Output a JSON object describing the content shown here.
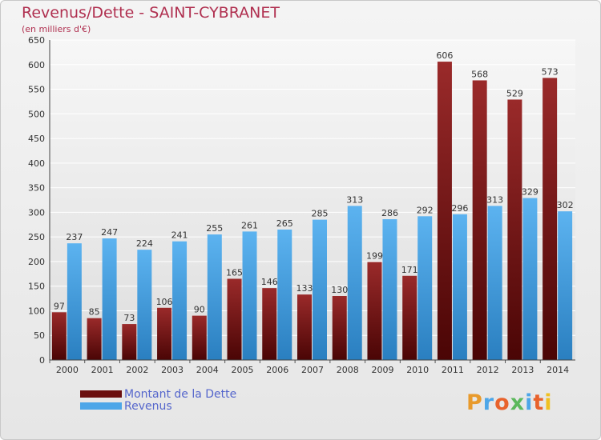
{
  "title": "Revenus/Dette - SAINT-CYBRANET",
  "subtitle": "(en milliers d'€)",
  "chart_data": {
    "type": "bar",
    "categories": [
      "2000",
      "2001",
      "2002",
      "2003",
      "2004",
      "2005",
      "2006",
      "2007",
      "2008",
      "2009",
      "2010",
      "2011",
      "2012",
      "2013",
      "2014"
    ],
    "series": [
      {
        "name": "Montant de la Dette",
        "color": "#8b1a1a",
        "values": [
          97,
          85,
          73,
          106,
          90,
          165,
          146,
          133,
          130,
          199,
          171,
          606,
          568,
          529,
          573
        ]
      },
      {
        "name": "Revenus",
        "color": "#4da6e8",
        "values": [
          237,
          247,
          224,
          241,
          255,
          261,
          265,
          285,
          313,
          286,
          292,
          296,
          313,
          329,
          302
        ]
      }
    ],
    "ylim": [
      0,
      650
    ],
    "yticks": [
      0,
      50,
      100,
      150,
      200,
      250,
      300,
      350,
      400,
      450,
      500,
      550,
      600,
      650
    ],
    "grid": true
  },
  "legend": {
    "items": [
      {
        "label": "Montant de la Dette",
        "color": "#6b0f0f"
      },
      {
        "label": "Revenus",
        "color": "#4da6e8"
      }
    ]
  },
  "logo": {
    "letters": [
      "P",
      "r",
      "o",
      "x",
      "i",
      "t",
      "i"
    ],
    "colors": [
      "#e89a2c",
      "#4da6e8",
      "#e8622c",
      "#5cb85c",
      "#4da6e8",
      "#e8622c",
      "#f0c020"
    ]
  }
}
